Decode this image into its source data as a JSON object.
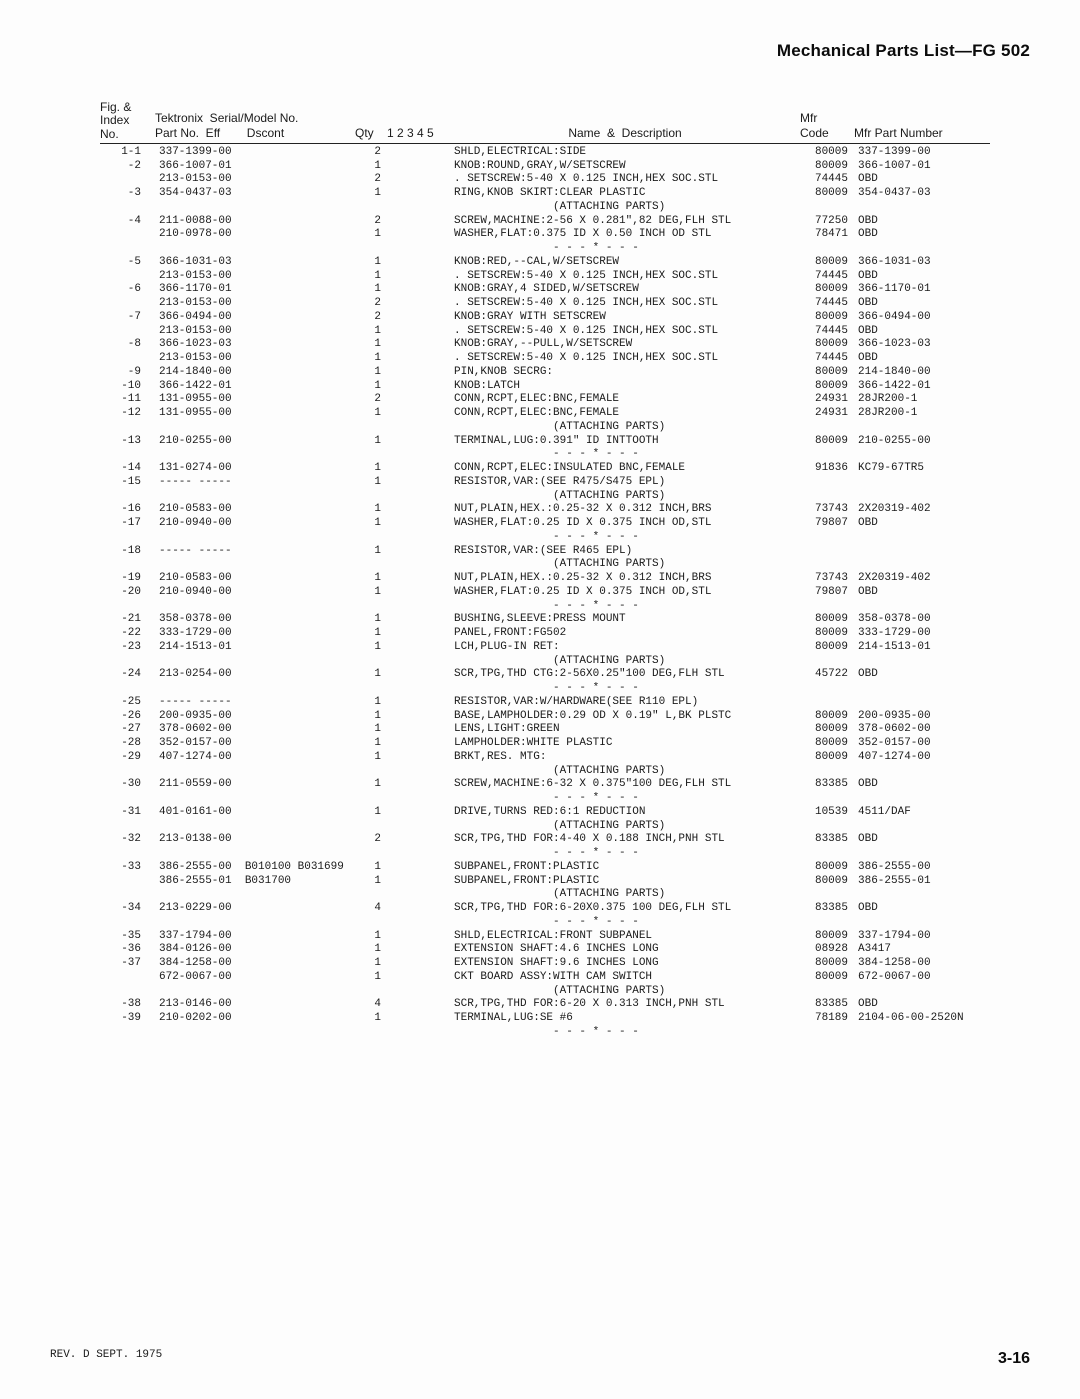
{
  "page_title": "Mechanical Parts List—FG 502",
  "header": {
    "col_index_l1": "Fig. &",
    "col_index_l2": "Index",
    "col_index_l3": "No.",
    "col_part_l1": "Tektronix  Serial/Model No.",
    "col_part_l2": "Part No.  Eff        Dscont",
    "col_qty": "Qty",
    "col_levels": "1 2 3 4 5",
    "col_desc": "Name  &  Description",
    "col_mfr_l1": "Mfr",
    "col_mfr_l2": "Code",
    "col_mpn": "Mfr Part Number"
  },
  "rows": [
    {
      "idx": "1-1",
      "part": "337-1399-00",
      "qty": "2",
      "lvl": "",
      "desc": "SHLD,ELECTRICAL:SIDE",
      "mfr": "80009",
      "mpn": "337-1399-00"
    },
    {
      "idx": "-2",
      "part": "366-1007-01",
      "qty": "1",
      "lvl": "",
      "desc": "KNOB:ROUND,GRAY,W/SETSCREW",
      "mfr": "80009",
      "mpn": "366-1007-01"
    },
    {
      "idx": "",
      "part": "213-0153-00",
      "qty": "2",
      "lvl": "",
      "desc": ". SETSCREW:5-40 X 0.125 INCH,HEX SOC.STL",
      "mfr": "74445",
      "mpn": "OBD"
    },
    {
      "idx": "-3",
      "part": "354-0437-03",
      "qty": "1",
      "lvl": "",
      "desc": "RING,KNOB SKIRT:CLEAR PLASTIC",
      "mfr": "80009",
      "mpn": "354-0437-03"
    },
    {
      "idx": "",
      "part": "",
      "qty": "",
      "lvl": "",
      "desc": "               (ATTACHING PARTS)",
      "mfr": "",
      "mpn": ""
    },
    {
      "idx": "-4",
      "part": "211-0088-00",
      "qty": "2",
      "lvl": "",
      "desc": "SCREW,MACHINE:2-56 X 0.281\",82 DEG,FLH STL",
      "mfr": "77250",
      "mpn": "OBD"
    },
    {
      "idx": "",
      "part": "210-0978-00",
      "qty": "1",
      "lvl": "",
      "desc": "WASHER,FLAT:0.375 ID X 0.50 INCH OD STL",
      "mfr": "78471",
      "mpn": "OBD"
    },
    {
      "idx": "",
      "part": "",
      "qty": "",
      "lvl": "",
      "desc": "               - - - * - - -",
      "mfr": "",
      "mpn": ""
    },
    {
      "idx": "-5",
      "part": "366-1031-03",
      "qty": "1",
      "lvl": "",
      "desc": "KNOB:RED,--CAL,W/SETSCREW",
      "mfr": "80009",
      "mpn": "366-1031-03"
    },
    {
      "idx": "",
      "part": "213-0153-00",
      "qty": "1",
      "lvl": "",
      "desc": ". SETSCREW:5-40 X 0.125 INCH,HEX SOC.STL",
      "mfr": "74445",
      "mpn": "OBD"
    },
    {
      "idx": "-6",
      "part": "366-1170-01",
      "qty": "1",
      "lvl": "",
      "desc": "KNOB:GRAY,4 SIDED,W/SETSCREW",
      "mfr": "80009",
      "mpn": "366-1170-01"
    },
    {
      "idx": "",
      "part": "213-0153-00",
      "qty": "2",
      "lvl": "",
      "desc": ". SETSCREW:5-40 X 0.125 INCH,HEX SOC.STL",
      "mfr": "74445",
      "mpn": "OBD"
    },
    {
      "idx": "-7",
      "part": "366-0494-00",
      "qty": "2",
      "lvl": "",
      "desc": "KNOB:GRAY WITH SETSCREW",
      "mfr": "80009",
      "mpn": "366-0494-00"
    },
    {
      "idx": "",
      "part": "213-0153-00",
      "qty": "1",
      "lvl": "",
      "desc": ". SETSCREW:5-40 X 0.125 INCH,HEX SOC.STL",
      "mfr": "74445",
      "mpn": "OBD"
    },
    {
      "idx": "-8",
      "part": "366-1023-03",
      "qty": "1",
      "lvl": "",
      "desc": "KNOB:GRAY,--PULL,W/SETSCREW",
      "mfr": "80009",
      "mpn": "366-1023-03"
    },
    {
      "idx": "",
      "part": "213-0153-00",
      "qty": "1",
      "lvl": "",
      "desc": ". SETSCREW:5-40 X 0.125 INCH,HEX SOC.STL",
      "mfr": "74445",
      "mpn": "OBD"
    },
    {
      "idx": "-9",
      "part": "214-1840-00",
      "qty": "1",
      "lvl": "",
      "desc": "PIN,KNOB SECRG:",
      "mfr": "80009",
      "mpn": "214-1840-00"
    },
    {
      "idx": "-10",
      "part": "366-1422-01",
      "qty": "1",
      "lvl": "",
      "desc": "KNOB:LATCH",
      "mfr": "80009",
      "mpn": "366-1422-01"
    },
    {
      "idx": "-11",
      "part": "131-0955-00",
      "qty": "2",
      "lvl": "",
      "desc": "CONN,RCPT,ELEC:BNC,FEMALE",
      "mfr": "24931",
      "mpn": "28JR200-1"
    },
    {
      "idx": "-12",
      "part": "131-0955-00",
      "qty": "1",
      "lvl": "",
      "desc": "CONN,RCPT,ELEC:BNC,FEMALE",
      "mfr": "24931",
      "mpn": "28JR200-1"
    },
    {
      "idx": "",
      "part": "",
      "qty": "",
      "lvl": "",
      "desc": "               (ATTACHING PARTS)",
      "mfr": "",
      "mpn": ""
    },
    {
      "idx": "-13",
      "part": "210-0255-00",
      "qty": "1",
      "lvl": "",
      "desc": "TERMINAL,LUG:0.391\" ID INTTOOTH",
      "mfr": "80009",
      "mpn": "210-0255-00"
    },
    {
      "idx": "",
      "part": "",
      "qty": "",
      "lvl": "",
      "desc": "               - - - * - - -",
      "mfr": "",
      "mpn": ""
    },
    {
      "idx": "-14",
      "part": "131-0274-00",
      "qty": "1",
      "lvl": "",
      "desc": "CONN,RCPT,ELEC:INSULATED BNC,FEMALE",
      "mfr": "91836",
      "mpn": "KC79-67TR5"
    },
    {
      "idx": "-15",
      "part": "----- -----",
      "qty": "1",
      "lvl": "",
      "desc": "RESISTOR,VAR:(SEE R475/S475 EPL)",
      "mfr": "",
      "mpn": ""
    },
    {
      "idx": "",
      "part": "",
      "qty": "",
      "lvl": "",
      "desc": "               (ATTACHING PARTS)",
      "mfr": "",
      "mpn": ""
    },
    {
      "idx": "-16",
      "part": "210-0583-00",
      "qty": "1",
      "lvl": "",
      "desc": "NUT,PLAIN,HEX.:0.25-32 X 0.312 INCH,BRS",
      "mfr": "73743",
      "mpn": "2X20319-402"
    },
    {
      "idx": "-17",
      "part": "210-0940-00",
      "qty": "1",
      "lvl": "",
      "desc": "WASHER,FLAT:0.25 ID X 0.375 INCH OD,STL",
      "mfr": "79807",
      "mpn": "OBD"
    },
    {
      "idx": "",
      "part": "",
      "qty": "",
      "lvl": "",
      "desc": "               - - - * - - -",
      "mfr": "",
      "mpn": ""
    },
    {
      "idx": "-18",
      "part": "----- -----",
      "qty": "1",
      "lvl": "",
      "desc": "RESISTOR,VAR:(SEE R465 EPL)",
      "mfr": "",
      "mpn": ""
    },
    {
      "idx": "",
      "part": "",
      "qty": "",
      "lvl": "",
      "desc": "               (ATTACHING PARTS)",
      "mfr": "",
      "mpn": ""
    },
    {
      "idx": "-19",
      "part": "210-0583-00",
      "qty": "1",
      "lvl": "",
      "desc": "NUT,PLAIN,HEX.:0.25-32 X 0.312 INCH,BRS",
      "mfr": "73743",
      "mpn": "2X20319-402"
    },
    {
      "idx": "-20",
      "part": "210-0940-00",
      "qty": "1",
      "lvl": "",
      "desc": "WASHER,FLAT:0.25 ID X 0.375 INCH OD,STL",
      "mfr": "79807",
      "mpn": "OBD"
    },
    {
      "idx": "",
      "part": "",
      "qty": "",
      "lvl": "",
      "desc": "               - - - * - - -",
      "mfr": "",
      "mpn": ""
    },
    {
      "idx": "-21",
      "part": "358-0378-00",
      "qty": "1",
      "lvl": "",
      "desc": "BUSHING,SLEEVE:PRESS MOUNT",
      "mfr": "80009",
      "mpn": "358-0378-00"
    },
    {
      "idx": "-22",
      "part": "333-1729-00",
      "qty": "1",
      "lvl": "",
      "desc": "PANEL,FRONT:FG502",
      "mfr": "80009",
      "mpn": "333-1729-00"
    },
    {
      "idx": "-23",
      "part": "214-1513-01",
      "qty": "1",
      "lvl": "",
      "desc": "LCH,PLUG-IN RET:",
      "mfr": "80009",
      "mpn": "214-1513-01"
    },
    {
      "idx": "",
      "part": "",
      "qty": "",
      "lvl": "",
      "desc": "               (ATTACHING PARTS)",
      "mfr": "",
      "mpn": ""
    },
    {
      "idx": "-24",
      "part": "213-0254-00",
      "qty": "1",
      "lvl": "",
      "desc": "SCR,TPG,THD CTG:2-56X0.25\"100 DEG,FLH STL",
      "mfr": "45722",
      "mpn": "OBD"
    },
    {
      "idx": "",
      "part": "",
      "qty": "",
      "lvl": "",
      "desc": "               - - - * - - -",
      "mfr": "",
      "mpn": ""
    },
    {
      "idx": "-25",
      "part": "----- -----",
      "qty": "1",
      "lvl": "",
      "desc": "RESISTOR,VAR:W/HARDWARE(SEE R110 EPL)",
      "mfr": "",
      "mpn": ""
    },
    {
      "idx": "-26",
      "part": "200-0935-00",
      "qty": "1",
      "lvl": "",
      "desc": "BASE,LAMPHOLDER:0.29 OD X 0.19\" L,BK PLSTC",
      "mfr": "80009",
      "mpn": "200-0935-00"
    },
    {
      "idx": "-27",
      "part": "378-0602-00",
      "qty": "1",
      "lvl": "",
      "desc": "LENS,LIGHT:GREEN",
      "mfr": "80009",
      "mpn": "378-0602-00"
    },
    {
      "idx": "-28",
      "part": "352-0157-00",
      "qty": "1",
      "lvl": "",
      "desc": "LAMPHOLDER:WHITE PLASTIC",
      "mfr": "80009",
      "mpn": "352-0157-00"
    },
    {
      "idx": "-29",
      "part": "407-1274-00",
      "qty": "1",
      "lvl": "",
      "desc": "BRKT,RES. MTG:",
      "mfr": "80009",
      "mpn": "407-1274-00"
    },
    {
      "idx": "",
      "part": "",
      "qty": "",
      "lvl": "",
      "desc": "               (ATTACHING PARTS)",
      "mfr": "",
      "mpn": ""
    },
    {
      "idx": "-30",
      "part": "211-0559-00",
      "qty": "1",
      "lvl": "",
      "desc": "SCREW,MACHINE:6-32 X 0.375\"100 DEG,FLH STL",
      "mfr": "83385",
      "mpn": "OBD"
    },
    {
      "idx": "",
      "part": "",
      "qty": "",
      "lvl": "",
      "desc": "               - - - * - - -",
      "mfr": "",
      "mpn": ""
    },
    {
      "idx": "-31",
      "part": "401-0161-00",
      "qty": "1",
      "lvl": "",
      "desc": "DRIVE,TURNS RED:6:1 REDUCTION",
      "mfr": "10539",
      "mpn": "4511/DAF"
    },
    {
      "idx": "",
      "part": "",
      "qty": "",
      "lvl": "",
      "desc": "               (ATTACHING PARTS)",
      "mfr": "",
      "mpn": ""
    },
    {
      "idx": "-32",
      "part": "213-0138-00",
      "qty": "2",
      "lvl": "",
      "desc": "SCR,TPG,THD FOR:4-40 X 0.188 INCH,PNH STL",
      "mfr": "83385",
      "mpn": "OBD"
    },
    {
      "idx": "",
      "part": "",
      "qty": "",
      "lvl": "",
      "desc": "               - - - * - - -",
      "mfr": "",
      "mpn": ""
    },
    {
      "idx": "-33",
      "part": "386-2555-00  B010100 B031699",
      "qty": "1",
      "lvl": "",
      "desc": "SUBPANEL,FRONT:PLASTIC",
      "mfr": "80009",
      "mpn": "386-2555-00"
    },
    {
      "idx": "",
      "part": "386-2555-01  B031700",
      "qty": "1",
      "lvl": "",
      "desc": "SUBPANEL,FRONT:PLASTIC",
      "mfr": "80009",
      "mpn": "386-2555-01"
    },
    {
      "idx": "",
      "part": "",
      "qty": "",
      "lvl": "",
      "desc": "               (ATTACHING PARTS)",
      "mfr": "",
      "mpn": ""
    },
    {
      "idx": "-34",
      "part": "213-0229-00",
      "qty": "4",
      "lvl": "",
      "desc": "SCR,TPG,THD FOR:6-20X0.375 100 DEG,FLH STL",
      "mfr": "83385",
      "mpn": "OBD"
    },
    {
      "idx": "",
      "part": "",
      "qty": "",
      "lvl": "",
      "desc": "               - - - * - - -",
      "mfr": "",
      "mpn": ""
    },
    {
      "idx": "-35",
      "part": "337-1794-00",
      "qty": "1",
      "lvl": "",
      "desc": "SHLD,ELECTRICAL:FRONT SUBPANEL",
      "mfr": "80009",
      "mpn": "337-1794-00"
    },
    {
      "idx": "-36",
      "part": "384-0126-00",
      "qty": "1",
      "lvl": "",
      "desc": "EXTENSION SHAFT:4.6 INCHES LONG",
      "mfr": "08928",
      "mpn": "A3417"
    },
    {
      "idx": "-37",
      "part": "384-1258-00",
      "qty": "1",
      "lvl": "",
      "desc": "EXTENSION SHAFT:9.6 INCHES LONG",
      "mfr": "80009",
      "mpn": "384-1258-00"
    },
    {
      "idx": "",
      "part": "672-0067-00",
      "qty": "1",
      "lvl": "",
      "desc": "CKT BOARD ASSY:WITH CAM SWITCH",
      "mfr": "80009",
      "mpn": "672-0067-00"
    },
    {
      "idx": "",
      "part": "",
      "qty": "",
      "lvl": "",
      "desc": "               (ATTACHING PARTS)",
      "mfr": "",
      "mpn": ""
    },
    {
      "idx": "-38",
      "part": "213-0146-00",
      "qty": "4",
      "lvl": "",
      "desc": "SCR,TPG,THD FOR:6-20 X 0.313 INCH,PNH STL",
      "mfr": "83385",
      "mpn": "OBD"
    },
    {
      "idx": "-39",
      "part": "210-0202-00",
      "qty": "1",
      "lvl": "",
      "desc": "TERMINAL,LUG:SE #6",
      "mfr": "78189",
      "mpn": "2104-06-00-2520N"
    },
    {
      "idx": "",
      "part": "",
      "qty": "",
      "lvl": "",
      "desc": "               - - - * - - -",
      "mfr": "",
      "mpn": ""
    }
  ],
  "footer": {
    "rev": "REV. D SEPT. 1975",
    "page": "3-16"
  }
}
